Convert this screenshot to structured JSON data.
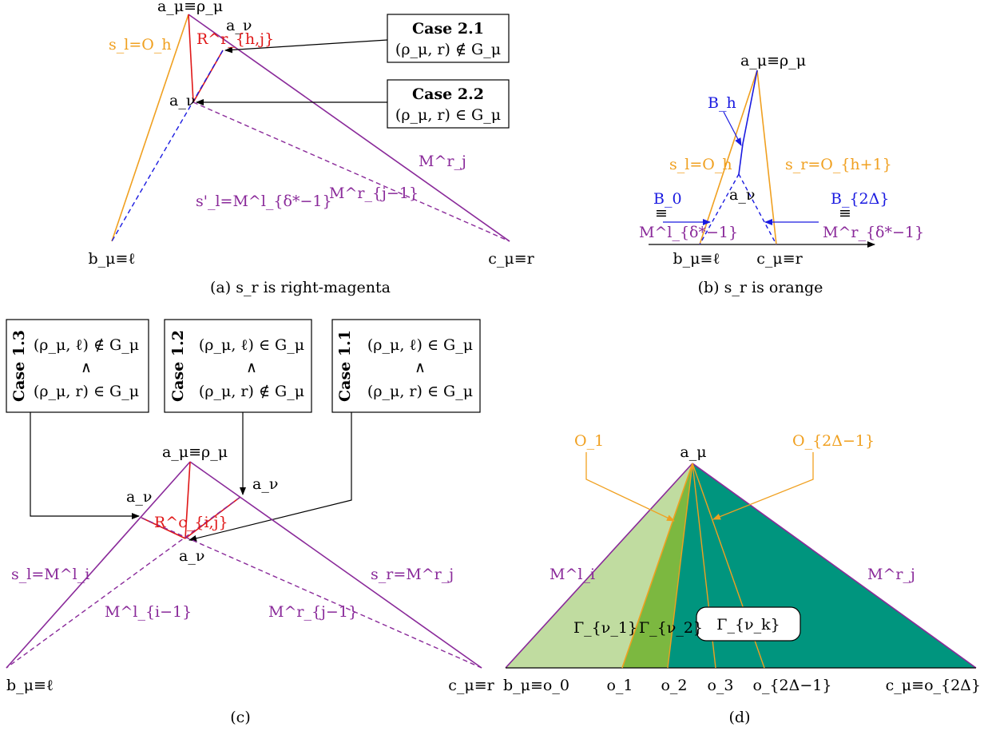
{
  "colors": {
    "magenta": "#8a2a9a",
    "orange": "#f0a020",
    "blue": "#1a1ae0",
    "red": "#e01818",
    "light_green": "#c0dca0",
    "mid_green": "#7cb840",
    "teal": "#00957e"
  },
  "panel_a": {
    "caption": "(a)  s_r  is right-magenta",
    "apex": "a_μ≡ρ_μ",
    "bottom_left": "b_μ≡ℓ",
    "bottom_right": "c_μ≡r",
    "a_nu_top": "a_ν",
    "a_nu_mid": "a_ν",
    "r_label": "R^r_{h,j}",
    "left_side": "s_l=O_h",
    "right_side": "M^r_j",
    "inner_left": "s'_l=M^l_{δ*−1}",
    "inner_right": "M^r_{j−1}",
    "case21_title": "Case 2.1",
    "case21_text": "(ρ_μ, r) ∉ G_μ",
    "case22_title": "Case 2.2",
    "case22_text": "(ρ_μ, r) ∈ G_μ"
  },
  "panel_b": {
    "caption": "(b)  s_r  is orange",
    "apex": "a_μ≡ρ_μ",
    "b_h": "B_h",
    "left_side": "s_l=O_h",
    "right_side": "s_r=O_{h+1}",
    "a_nu": "a_ν",
    "b0": "B_0",
    "b2d": "B_{2Δ}",
    "equiv": "≡",
    "m_left": "M^l_{δ*−1}",
    "m_right": "M^r_{δ*−1}",
    "bottom_left": "b_μ≡ℓ",
    "bottom_right": "c_μ≡r"
  },
  "panel_c": {
    "caption": "(c)",
    "cases": [
      {
        "title": "Case 1.3",
        "line1": "(ρ_μ, ℓ) ∉ G_μ",
        "op": "∧",
        "line2": "(ρ_μ, r) ∈ G_μ"
      },
      {
        "title": "Case 1.2",
        "line1": "(ρ_μ, ℓ) ∈ G_μ",
        "op": "∧",
        "line2": "(ρ_μ, r) ∉ G_μ"
      },
      {
        "title": "Case 1.1",
        "line1": "(ρ_μ, ℓ) ∈ G_μ",
        "op": "∧",
        "line2": "(ρ_μ, r) ∈ G_μ"
      }
    ],
    "apex": "a_μ≡ρ_μ",
    "a_nu_left": "a_ν",
    "a_nu_right": "a_ν",
    "a_nu_bottom": "a_ν",
    "r_label": "R^c_{i,j}",
    "left_side": "s_l=M^l_i",
    "right_side": "s_r=M^r_j",
    "inner_left": "M^l_{i−1}",
    "inner_right": "M^r_{j−1}",
    "bottom_left": "b_μ≡ℓ",
    "bottom_right": "c_μ≡r"
  },
  "panel_d": {
    "caption": "(d)",
    "apex": "a_μ",
    "o1_top": "O_1",
    "o2d_top": "O_{2Δ−1}",
    "left_side": "M^l_i",
    "right_side": "M^r_j",
    "gamma1": "Γ_{ν_1}",
    "gamma2": "Γ_{ν_2}",
    "gammak": "Γ_{ν_k}",
    "bottom_labels": [
      "b_μ≡o_0",
      "o_1",
      "o_2",
      "o_3",
      "o_{2Δ−1}",
      "c_μ≡o_{2Δ}"
    ]
  }
}
